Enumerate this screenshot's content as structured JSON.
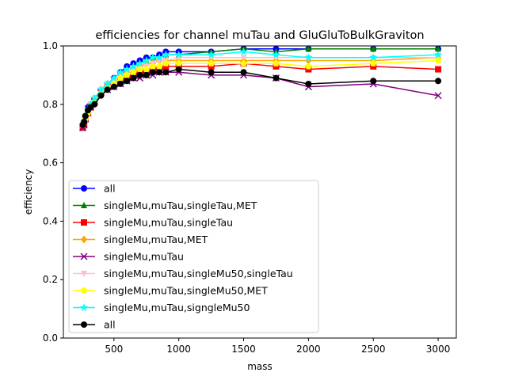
{
  "chart_data": {
    "type": "line",
    "title": "efficiencies for channel muTau and GluGluToBulkGraviton",
    "xlabel": "mass",
    "ylabel": "efficiency",
    "xlim": [
      110,
      3140
    ],
    "ylim": [
      0.0,
      1.0
    ],
    "xticks": [
      500,
      1000,
      1500,
      2000,
      2500,
      3000
    ],
    "yticks": [
      0.0,
      0.2,
      0.4,
      0.6,
      0.8,
      1.0
    ],
    "grid": false,
    "legend_position": "lower-left",
    "x": [
      260,
      270,
      280,
      300,
      320,
      350,
      400,
      450,
      500,
      550,
      600,
      650,
      700,
      750,
      800,
      850,
      900,
      1000,
      1250,
      1500,
      1750,
      2000,
      2500,
      3000
    ],
    "series": [
      {
        "name": "all",
        "color": "#0000ff",
        "marker": "circle",
        "values": [
          0.73,
          0.74,
          0.76,
          0.79,
          0.8,
          0.82,
          0.85,
          0.87,
          0.89,
          0.91,
          0.93,
          0.94,
          0.95,
          0.96,
          0.96,
          0.97,
          0.98,
          0.98,
          0.98,
          0.99,
          0.99,
          0.99,
          0.99,
          0.99
        ]
      },
      {
        "name": "singleMu,muTau,singleTau,MET",
        "color": "#008000",
        "marker": "triangle-up",
        "values": [
          0.73,
          0.74,
          0.76,
          0.78,
          0.8,
          0.82,
          0.85,
          0.87,
          0.88,
          0.9,
          0.92,
          0.93,
          0.94,
          0.95,
          0.96,
          0.96,
          0.97,
          0.97,
          0.98,
          0.99,
          0.98,
          0.99,
          0.99,
          0.99
        ]
      },
      {
        "name": "singleMu,muTau,singleTau",
        "color": "#ff0000",
        "marker": "square",
        "values": [
          0.72,
          0.73,
          0.75,
          0.77,
          0.79,
          0.81,
          0.84,
          0.86,
          0.87,
          0.88,
          0.89,
          0.9,
          0.91,
          0.91,
          0.92,
          0.92,
          0.93,
          0.93,
          0.93,
          0.94,
          0.93,
          0.92,
          0.93,
          0.92
        ]
      },
      {
        "name": "singleMu,muTau,MET",
        "color": "#ffa500",
        "marker": "diamond",
        "values": [
          0.73,
          0.74,
          0.76,
          0.78,
          0.8,
          0.82,
          0.85,
          0.87,
          0.88,
          0.9,
          0.91,
          0.92,
          0.93,
          0.94,
          0.94,
          0.95,
          0.95,
          0.95,
          0.95,
          0.95,
          0.95,
          0.95,
          0.95,
          0.96
        ]
      },
      {
        "name": "singleMu,muTau",
        "color": "#800080",
        "marker": "x",
        "values": [
          0.72,
          0.73,
          0.75,
          0.77,
          0.79,
          0.81,
          0.84,
          0.85,
          0.86,
          0.87,
          0.88,
          0.89,
          0.89,
          0.9,
          0.9,
          0.91,
          0.91,
          0.91,
          0.9,
          0.9,
          0.89,
          0.86,
          0.87,
          0.83
        ]
      },
      {
        "name": "singleMu,muTau,singleMu50,singleTau",
        "color": "#ffc0cb",
        "marker": "triangle-down",
        "values": [
          0.73,
          0.74,
          0.76,
          0.78,
          0.8,
          0.82,
          0.85,
          0.87,
          0.88,
          0.9,
          0.91,
          0.92,
          0.93,
          0.93,
          0.94,
          0.95,
          0.95,
          0.96,
          0.96,
          0.96,
          0.96,
          0.96,
          0.96,
          0.96
        ]
      },
      {
        "name": "singleMu,muTau,singleMu50,MET",
        "color": "#ffff00",
        "marker": "pentagon",
        "values": [
          0.73,
          0.74,
          0.75,
          0.77,
          0.79,
          0.81,
          0.84,
          0.86,
          0.87,
          0.89,
          0.9,
          0.91,
          0.92,
          0.92,
          0.93,
          0.93,
          0.94,
          0.94,
          0.94,
          0.94,
          0.94,
          0.93,
          0.94,
          0.95
        ]
      },
      {
        "name": "singleMu,muTau,signgleMu50",
        "color": "#00ffff",
        "marker": "star",
        "values": [
          0.73,
          0.74,
          0.76,
          0.78,
          0.8,
          0.82,
          0.85,
          0.87,
          0.89,
          0.91,
          0.92,
          0.93,
          0.94,
          0.95,
          0.96,
          0.96,
          0.97,
          0.97,
          0.97,
          0.98,
          0.97,
          0.96,
          0.96,
          0.97
        ]
      },
      {
        "name": "all",
        "color": "#000000",
        "marker": "circle",
        "values": [
          0.73,
          0.74,
          0.76,
          0.78,
          0.79,
          0.8,
          0.83,
          0.85,
          0.86,
          0.87,
          0.88,
          0.89,
          0.9,
          0.9,
          0.91,
          0.91,
          0.91,
          0.92,
          0.91,
          0.91,
          0.89,
          0.87,
          0.88,
          0.88
        ]
      }
    ]
  }
}
